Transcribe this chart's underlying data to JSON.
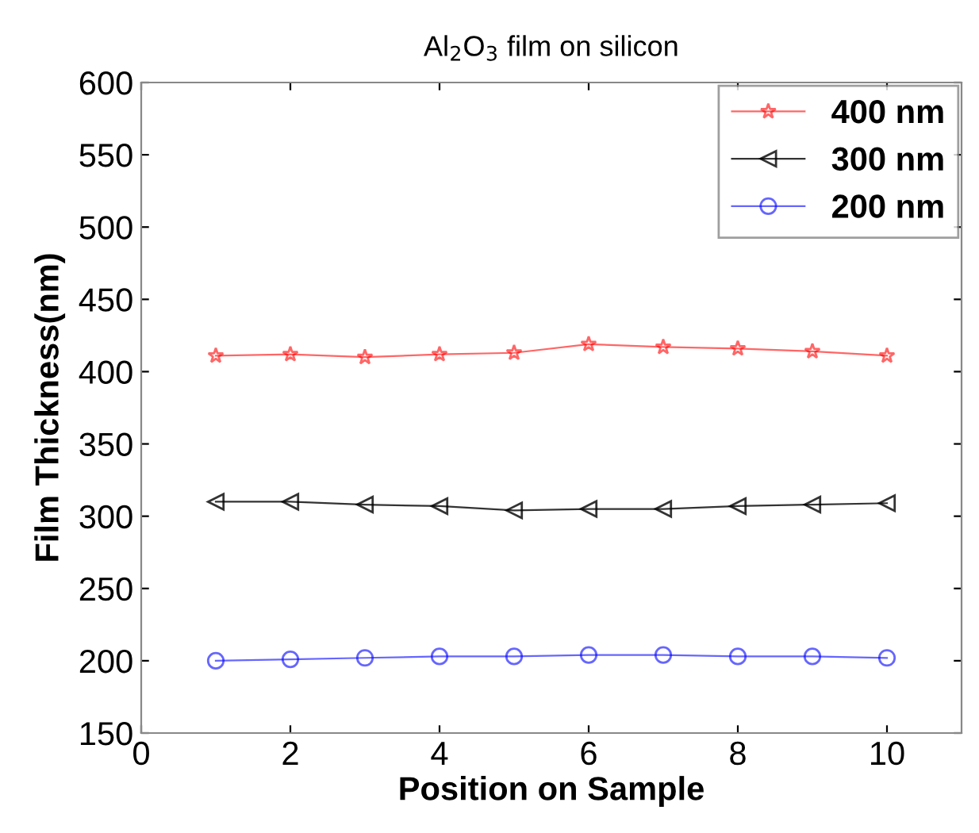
{
  "chart_data": {
    "type": "line",
    "title": "Al$_{2}$O$_{3}$ film on silicon",
    "xlabel": "Position on Sample",
    "ylabel": "Film Thickness(nm)",
    "x": [
      1,
      2,
      3,
      4,
      5,
      6,
      7,
      8,
      9,
      10
    ],
    "series": [
      {
        "name": "400 nm",
        "color": "#ff0000",
        "marker": "star",
        "values": [
          411,
          412,
          410,
          412,
          413,
          419,
          417,
          416,
          414,
          411
        ]
      },
      {
        "name": "300 nm",
        "color": "#000000",
        "marker": "triangle",
        "values": [
          310,
          310,
          308,
          307,
          304,
          305,
          305,
          307,
          308,
          309
        ]
      },
      {
        "name": "200 nm",
        "color": "#0000ff",
        "marker": "circle",
        "values": [
          200,
          201,
          202,
          203,
          203,
          204,
          204,
          203,
          203,
          202
        ]
      }
    ],
    "xlim": [
      0,
      11
    ],
    "xticks": [
      0,
      2,
      4,
      6,
      8,
      10
    ],
    "ylim": [
      150,
      600
    ],
    "yticks": [
      150,
      200,
      250,
      300,
      350,
      400,
      450,
      500,
      550,
      600
    ],
    "grid": false,
    "legend": "top right",
    "line_style": "solid"
  }
}
